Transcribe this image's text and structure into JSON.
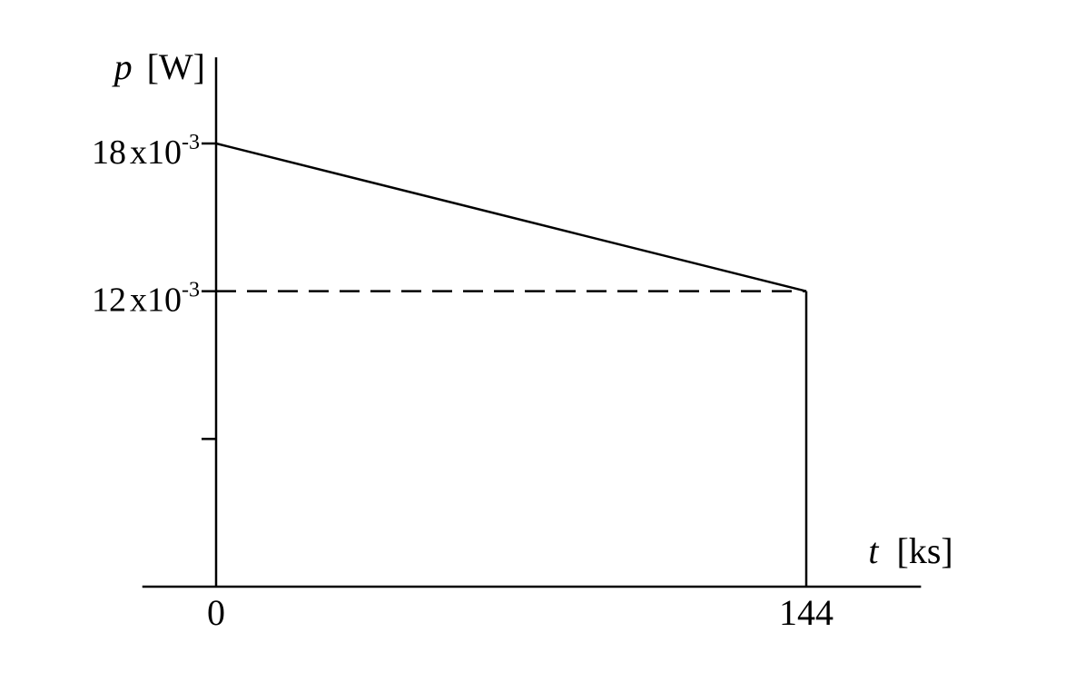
{
  "chart_data": {
    "type": "line",
    "title": "",
    "x_axis": {
      "symbol": "t",
      "unit": "[ks]",
      "tick_labels": [
        "0",
        "144"
      ],
      "ticks": [
        0,
        144
      ],
      "range": [
        -18,
        172
      ]
    },
    "y_axis": {
      "symbol": "p",
      "unit": "[W]",
      "range": [
        0,
        0.0215
      ],
      "labeled_ticks": [
        {
          "value": 0.018,
          "mantissa": "18",
          "times": "x",
          "base": "10",
          "exponent": "-3"
        },
        {
          "value": 0.012,
          "mantissa": "12",
          "times": "x",
          "base": "10",
          "exponent": "-3"
        }
      ],
      "unlabeled_ticks": [
        0.006
      ]
    },
    "series": [
      {
        "x": [
          0,
          144
        ],
        "y": [
          0.018,
          0.012
        ]
      }
    ],
    "guides": [
      {
        "kind": "dashed-horizontal",
        "y": 0.012,
        "x_from": 0,
        "x_to": 144
      },
      {
        "kind": "solid-vertical",
        "x": 144,
        "y_from": 0,
        "y_to": 0.012
      }
    ],
    "grid": false,
    "legend": "none"
  }
}
